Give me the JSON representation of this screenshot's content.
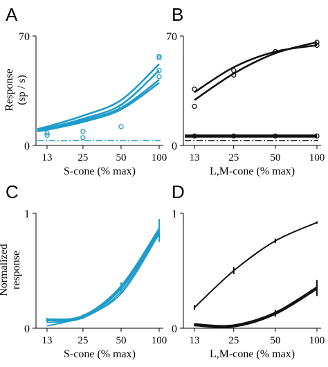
{
  "colors": {
    "cyan": "#1f9cc9",
    "black": "#111111"
  },
  "chart_data": [
    {
      "panel": "A",
      "type": "line",
      "xlabel": "S-cone (% max)",
      "ylabel": "Response\n(sp / s)",
      "x_scale": "log",
      "x_ticks": [
        13,
        25,
        50,
        100
      ],
      "x_tick_labels": [
        "13",
        "25",
        "50",
        "100"
      ],
      "ylim": [
        0,
        70
      ],
      "y_tick_labels": [
        "0",
        "70"
      ],
      "color": "cyan",
      "series": [
        {
          "style": "fit",
          "x": [
            11,
            13,
            25,
            50,
            100
          ],
          "values": [
            10.5,
            12,
            19,
            29,
            52
          ]
        },
        {
          "style": "fit",
          "x": [
            11,
            13,
            25,
            50,
            100
          ],
          "values": [
            10,
            11,
            17,
            26,
            48
          ]
        },
        {
          "style": "fit",
          "x": [
            11,
            13,
            25,
            50,
            100
          ],
          "values": [
            9.5,
            10.5,
            16,
            24,
            42
          ]
        },
        {
          "style": "fit",
          "x": [
            11,
            13,
            25,
            50,
            100
          ],
          "values": [
            9,
            10,
            15,
            23,
            40
          ]
        },
        {
          "style": "points",
          "x": [
            13,
            13,
            25,
            25,
            50,
            50,
            100,
            100,
            100,
            100
          ],
          "values": [
            8,
            6.5,
            9,
            5,
            12,
            25,
            57,
            56,
            48,
            44
          ]
        },
        {
          "style": "dashdot",
          "x": [
            11,
            100
          ],
          "values": [
            3,
            3
          ]
        }
      ]
    },
    {
      "panel": "B",
      "type": "line",
      "xlabel": "L,M-cone (% max)",
      "ylabel": "",
      "x_scale": "log",
      "x_ticks": [
        13,
        25,
        50,
        100
      ],
      "x_tick_labels": [
        "13",
        "25",
        "50",
        "100"
      ],
      "ylim": [
        0,
        70
      ],
      "y_tick_labels": [
        "0",
        "70"
      ],
      "color": "black",
      "series": [
        {
          "style": "fit",
          "x": [
            13,
            25,
            50,
            100
          ],
          "values": [
            29,
            46,
            59,
            66
          ]
        },
        {
          "style": "fit",
          "x": [
            13,
            25,
            50,
            100
          ],
          "values": [
            34,
            50,
            60,
            64
          ]
        },
        {
          "style": "points",
          "x": [
            13,
            13,
            25,
            25,
            50,
            100,
            100
          ],
          "values": [
            36,
            25,
            45,
            48,
            60,
            66,
            64
          ]
        },
        {
          "style": "thick",
          "x": [
            13,
            25,
            50,
            100
          ],
          "values": [
            6,
            6,
            6,
            6
          ]
        },
        {
          "style": "points",
          "x": [
            13,
            25,
            50,
            100
          ],
          "values": [
            6,
            6,
            6,
            6
          ]
        },
        {
          "style": "dashdot",
          "x": [
            11,
            100
          ],
          "values": [
            3,
            3
          ]
        }
      ]
    },
    {
      "panel": "C",
      "type": "line",
      "xlabel": "S-cone (% max)",
      "ylabel": "Normalized\nresponse",
      "x_scale": "log",
      "x_ticks": [
        13,
        25,
        50,
        100
      ],
      "x_tick_labels": [
        "13",
        "25",
        "50",
        "100"
      ],
      "ylim": [
        0,
        1
      ],
      "y_tick_labels": [
        "0",
        "1"
      ],
      "color": "cyan",
      "series": [
        {
          "style": "mean",
          "x": [
            13,
            25,
            50,
            100
          ],
          "values": [
            0.07,
            0.1,
            0.35,
            0.85
          ],
          "err": [
            0.02,
            0.02,
            0.05,
            0.1
          ]
        },
        {
          "style": "thin",
          "x": [
            13,
            25,
            50,
            100
          ],
          "values": [
            0.05,
            0.09,
            0.32,
            0.83
          ]
        },
        {
          "style": "thin",
          "x": [
            13,
            25,
            50,
            100
          ],
          "values": [
            0.08,
            0.11,
            0.37,
            0.87
          ]
        },
        {
          "style": "thin",
          "x": [
            13,
            25,
            50,
            100
          ],
          "values": [
            0.02,
            0.1,
            0.3,
            0.82
          ]
        }
      ]
    },
    {
      "panel": "D",
      "type": "line",
      "xlabel": "L,M-cone (% max)",
      "ylabel": "",
      "x_scale": "log",
      "x_ticks": [
        13,
        25,
        50,
        100
      ],
      "x_tick_labels": [
        "13",
        "25",
        "50",
        "100"
      ],
      "ylim": [
        0,
        1
      ],
      "y_tick_labels": [
        "0",
        "1"
      ],
      "color": "black",
      "series": [
        {
          "style": "mean",
          "x": [
            13,
            25,
            50,
            100
          ],
          "values": [
            0.18,
            0.5,
            0.76,
            0.92
          ],
          "err": [
            0.02,
            0.03,
            0.02,
            0.01
          ]
        },
        {
          "style": "thickmean",
          "x": [
            13,
            25,
            50,
            100
          ],
          "values": [
            0.03,
            0.02,
            0.13,
            0.35
          ],
          "err": [
            0.01,
            0.01,
            0.03,
            0.07
          ]
        }
      ]
    }
  ]
}
